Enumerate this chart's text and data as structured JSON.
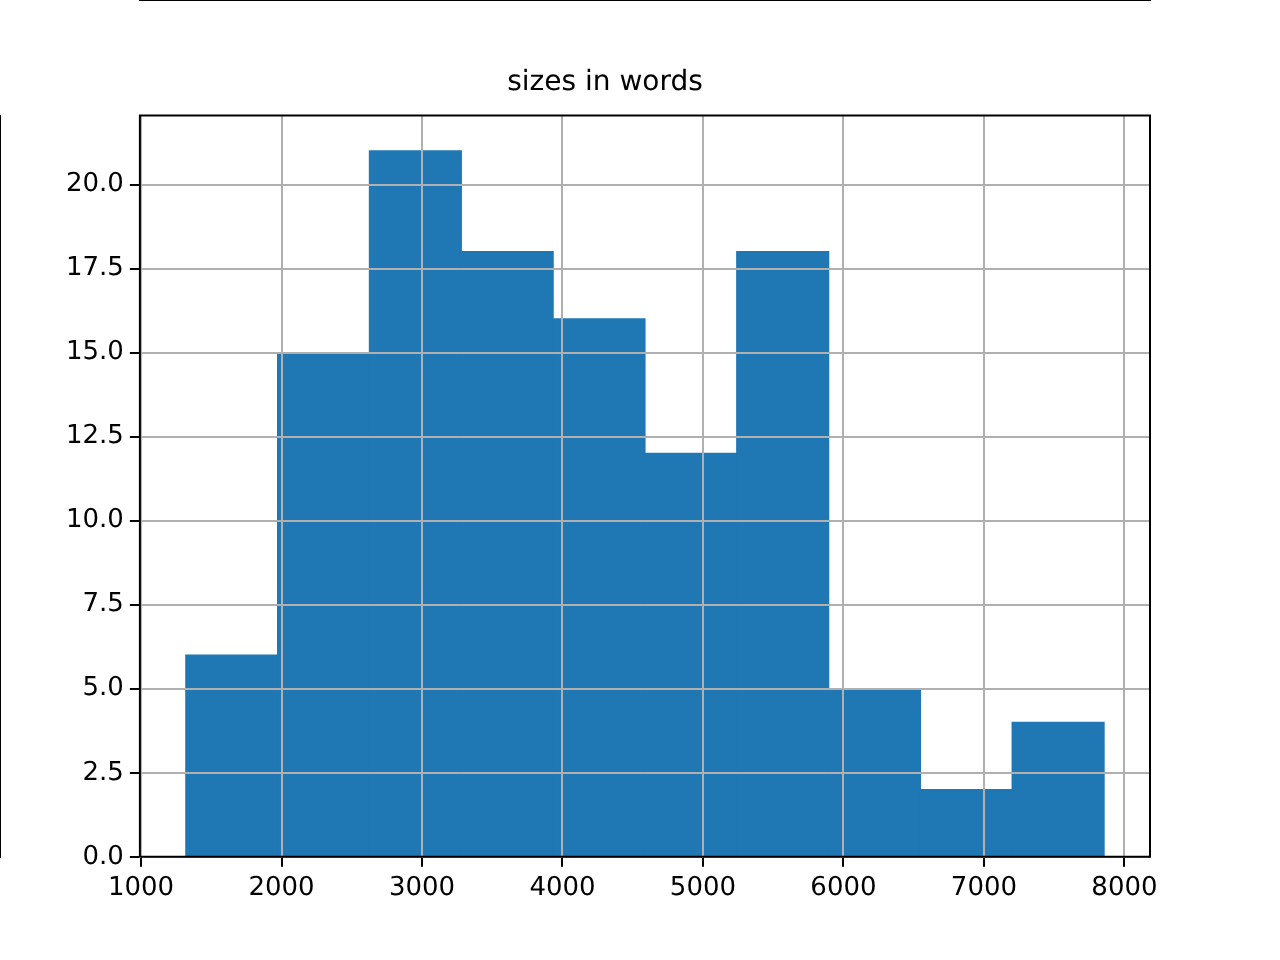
{
  "chart_data": {
    "type": "histogram",
    "title": "sizes in words",
    "bins": [
      1319,
      1973,
      2626,
      3280,
      3933,
      4587,
      5241,
      5894,
      6548,
      7201,
      7855
    ],
    "values": [
      6,
      15,
      21,
      18,
      16,
      12,
      18,
      5,
      2,
      4
    ],
    "color": "#1f77b4",
    "xlim": [
      992,
      8182
    ],
    "xticks": [
      1000,
      2000,
      3000,
      4000,
      5000,
      6000,
      7000,
      8000
    ],
    "ylim": [
      0,
      22.05
    ],
    "yticks": [
      {
        "value": 0,
        "label": "0.0"
      },
      {
        "value": 2.5,
        "label": "2.5"
      },
      {
        "value": 5,
        "label": "5.0"
      },
      {
        "value": 7.5,
        "label": "7.5"
      },
      {
        "value": 10,
        "label": "10.0"
      },
      {
        "value": 12.5,
        "label": "12.5"
      },
      {
        "value": 15,
        "label": "15.0"
      },
      {
        "value": 17.5,
        "label": "17.5"
      },
      {
        "value": 20,
        "label": "20.0"
      }
    ],
    "grid": true
  }
}
